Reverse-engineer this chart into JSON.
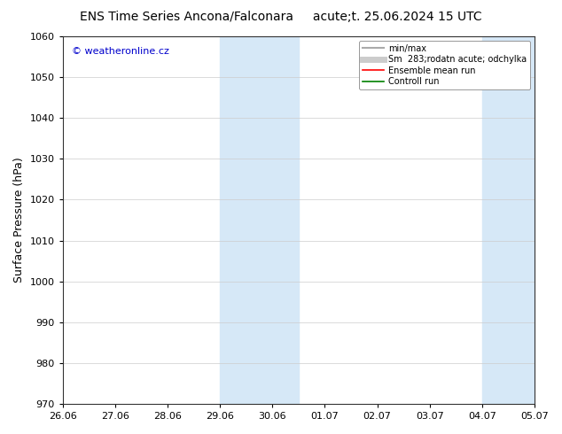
{
  "title_left": "ENS Time Series Ancona/Falconara",
  "title_right": "acute;t. 25.06.2024 15 UTC",
  "ylabel": "Surface Pressure (hPa)",
  "ylim": [
    970,
    1060
  ],
  "yticks": [
    970,
    980,
    990,
    1000,
    1010,
    1020,
    1030,
    1040,
    1050,
    1060
  ],
  "xtick_labels": [
    "26.06",
    "27.06",
    "28.06",
    "29.06",
    "30.06",
    "01.07",
    "02.07",
    "03.07",
    "04.07",
    "05.07"
  ],
  "x_positions": [
    0,
    1,
    2,
    3,
    4,
    5,
    6,
    7,
    8,
    9
  ],
  "shaded_regions": [
    {
      "xmin": 3.0,
      "xmax": 4.5,
      "color": "#d6e8f7"
    },
    {
      "xmin": 8.0,
      "xmax": 9.0,
      "color": "#d6e8f7"
    }
  ],
  "watermark_text": "© weatheronline.cz",
  "watermark_color": "#0000cc",
  "legend_entries": [
    {
      "label": "min/max",
      "color": "#aaaaaa",
      "lw": 1.5,
      "ls": "-"
    },
    {
      "label": "Sm  283;rodatn acute; odchylka",
      "color": "#cccccc",
      "lw": 5,
      "ls": "-"
    },
    {
      "label": "Ensemble mean run",
      "color": "#ff0000",
      "lw": 1.2,
      "ls": "-"
    },
    {
      "label": "Controll run",
      "color": "#008000",
      "lw": 1.2,
      "ls": "-"
    }
  ],
  "bg_color": "#ffffff",
  "grid_color": "#cccccc",
  "tick_fontsize": 8,
  "ylabel_fontsize": 9,
  "title_fontsize": 10,
  "legend_fontsize": 7
}
